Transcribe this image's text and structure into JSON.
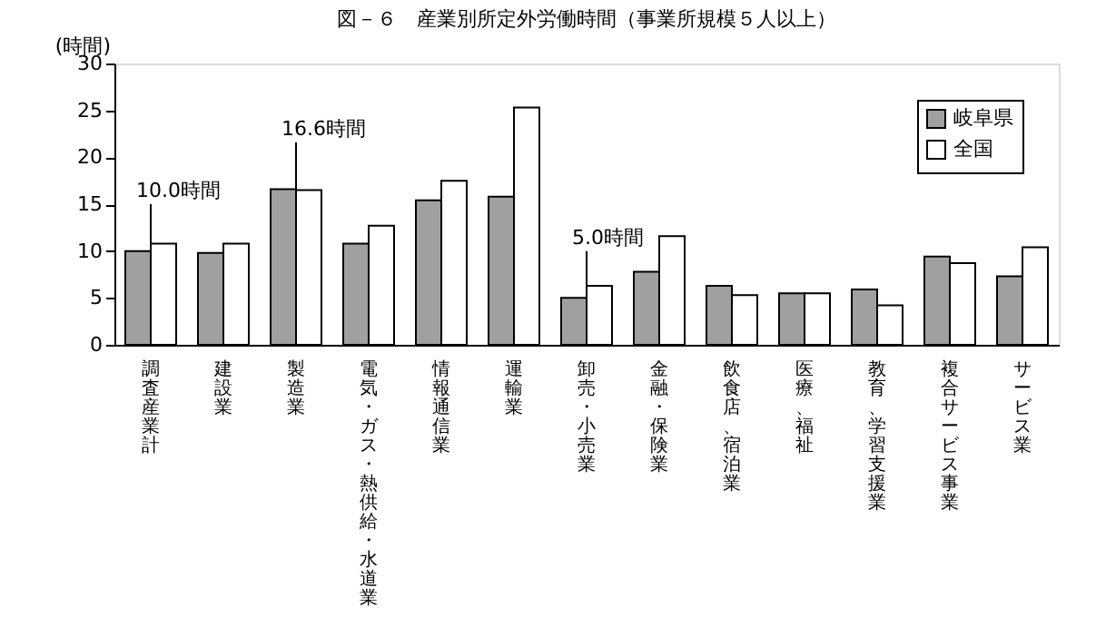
{
  "chart_data": {
    "type": "bar",
    "title": "図－６　産業別所定外労働時間（事業所規模５人以上）",
    "ylabel": "(時間)",
    "categories": [
      "調査産業計",
      "建設業",
      "製造業",
      "電気・ガス・熱供給・水道業",
      "情報通信業",
      "運輸業",
      "卸売・小売業",
      "金融・保険業",
      "飲食店、宿泊業",
      "医療、福祉",
      "教育、学習支援業",
      "複合サービス事業",
      "サービス業"
    ],
    "series": [
      {
        "name": "岐阜県",
        "color": "#a0a0a0",
        "values": [
          10.0,
          9.8,
          16.6,
          10.8,
          15.4,
          15.8,
          5.0,
          7.8,
          6.3,
          5.5,
          5.9,
          9.4,
          7.3
        ]
      },
      {
        "name": "全国",
        "color": "#ffffff",
        "values": [
          10.8,
          10.8,
          16.5,
          12.7,
          17.5,
          25.3,
          6.3,
          11.6,
          5.3,
          5.5,
          4.2,
          8.7,
          10.4
        ]
      }
    ],
    "annotations": [
      {
        "text": "10.0時間",
        "x": "調査産業計",
        "y": 10.0
      },
      {
        "text": "16.6時間",
        "x": "製造業",
        "y": 16.6
      },
      {
        "text": "5.0時間",
        "x": "卸売・小売業",
        "y": 5.0
      }
    ],
    "ylim": [
      0,
      30
    ],
    "yticks": [
      0,
      5,
      10,
      15,
      20,
      25,
      30
    ],
    "grid": false,
    "legend": "top right"
  }
}
